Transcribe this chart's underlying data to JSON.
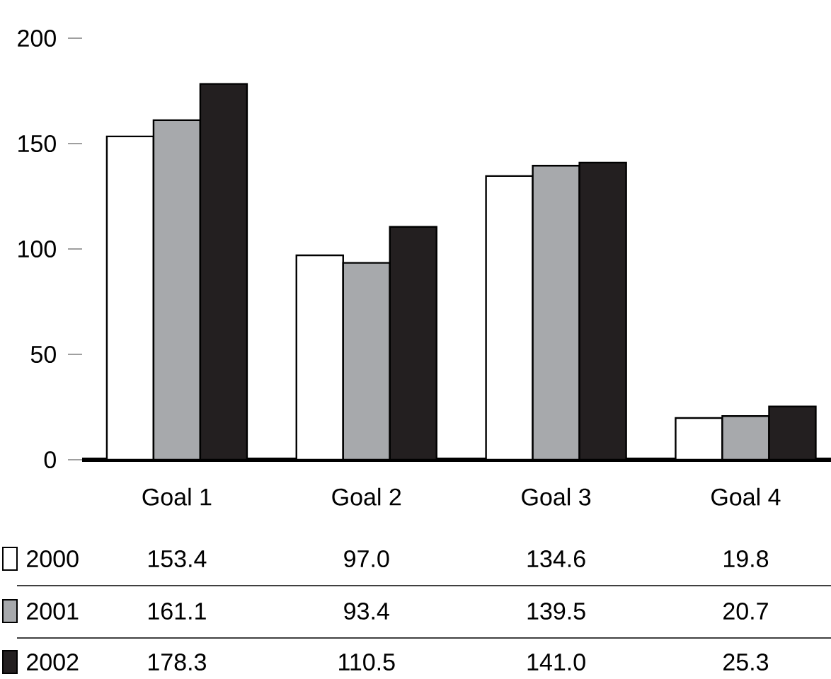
{
  "chart_data": {
    "type": "bar",
    "categories": [
      "Goal 1",
      "Goal 2",
      "Goal 3",
      "Goal 4"
    ],
    "series": [
      {
        "name": "2000",
        "color": "#ffffff",
        "values": [
          153.4,
          97.0,
          134.6,
          19.8
        ],
        "value_labels": [
          "153.4",
          "97.0",
          "134.6",
          "19.8"
        ]
      },
      {
        "name": "2001",
        "color": "#a7a9ac",
        "values": [
          161.1,
          93.4,
          139.5,
          20.7
        ],
        "value_labels": [
          "161.1",
          "93.4",
          "139.5",
          "20.7"
        ]
      },
      {
        "name": "2002",
        "color": "#231f20",
        "values": [
          178.3,
          110.5,
          141.0,
          25.3
        ],
        "value_labels": [
          "178.3",
          "110.5",
          "141.0",
          "25.3"
        ]
      }
    ],
    "ylim": [
      0,
      200
    ],
    "yticks": [
      0,
      50,
      100,
      150,
      200
    ],
    "legend": "bottom"
  }
}
